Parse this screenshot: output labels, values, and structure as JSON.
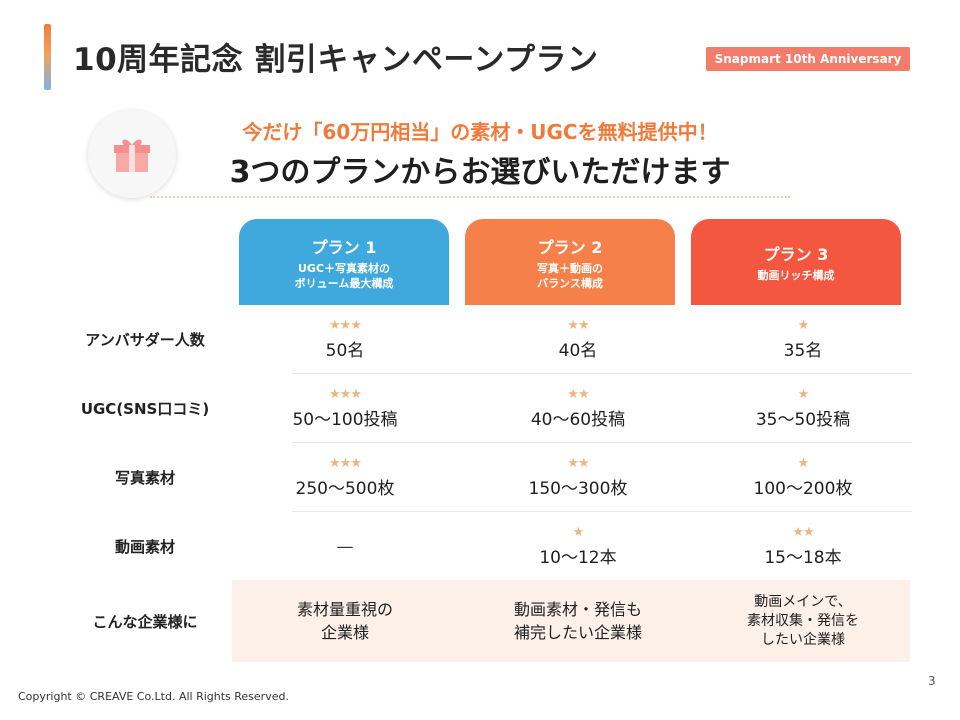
{
  "header": {
    "title": "10周年記念 割引キャンペーンプラン",
    "badge": "Snapmart 10th Anniversary"
  },
  "headline": {
    "line1": "今だけ「60万円相当」の素材・UGCを無料提供中！",
    "line2": "3つのプランからお選びいただけます",
    "icon": "gift-icon"
  },
  "colors": {
    "plan1": "#3fa9dd",
    "plan2": "#f6804a",
    "plan3": "#f4573f",
    "accent_orange": "#f07a3a",
    "star": "#e8b880",
    "target_bg": "#fdf0e8"
  },
  "plans": [
    {
      "name": "プラン 1",
      "desc1": "UGC＋写真素材の",
      "desc2": "ボリューム最大構成"
    },
    {
      "name": "プラン 2",
      "desc1": "写真＋動画の",
      "desc2": "バランス構成"
    },
    {
      "name": "プラン 3",
      "desc1": "動画リッチ構成",
      "desc2": ""
    }
  ],
  "rows": [
    {
      "label": "アンバサダー人数",
      "cells": [
        {
          "stars": "★★★",
          "value": "50名"
        },
        {
          "stars": "★★",
          "value": "40名"
        },
        {
          "stars": "★",
          "value": "35名"
        }
      ]
    },
    {
      "label": "UGC(SNS口コミ)",
      "cells": [
        {
          "stars": "★★★",
          "value": "50〜100投稿"
        },
        {
          "stars": "★★",
          "value": "40〜60投稿"
        },
        {
          "stars": "★",
          "value": "35〜50投稿"
        }
      ]
    },
    {
      "label": "写真素材",
      "cells": [
        {
          "stars": "★★★",
          "value": "250〜500枚"
        },
        {
          "stars": "★★",
          "value": "150〜300枚"
        },
        {
          "stars": "★",
          "value": "100〜200枚"
        }
      ]
    },
    {
      "label": "動画素材",
      "cells": [
        {
          "stars": "",
          "value": "—"
        },
        {
          "stars": "★",
          "value": "10〜12本"
        },
        {
          "stars": "★★",
          "value": "15〜18本"
        }
      ]
    }
  ],
  "target_row": {
    "label": "こんな企業様に",
    "cells": [
      "素材量重視の\n企業様",
      "動画素材・発信も\n補完したい企業様",
      "動画メインで、\n素材収集・発信を\nしたい企業様"
    ]
  },
  "footer": {
    "copyright": "Copyright © CREAVE Co.Ltd. All Rights Reserved.",
    "page_number": "3"
  }
}
